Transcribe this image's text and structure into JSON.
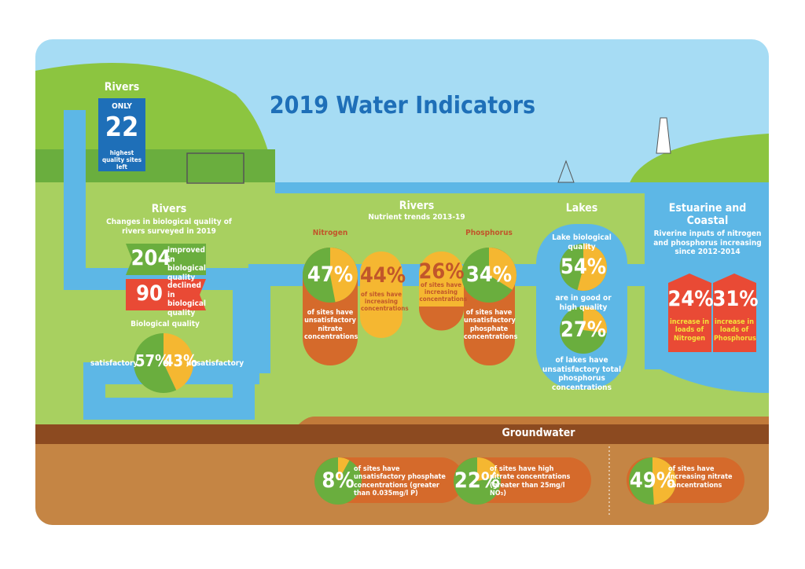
{
  "title": "2019 Water Indicators",
  "rivers_quality": {
    "heading": "Rivers",
    "only": "ONLY",
    "value": 22,
    "caption": "highest quality sites left"
  },
  "rivers_bio": {
    "heading": "Rivers",
    "subtitle": "Changes in biological quality of rivers surveyed in 2019",
    "improved": {
      "value": 204,
      "text": "improved in biological quality"
    },
    "declined": {
      "value": 90,
      "text": "declined in biological quality"
    },
    "pie_title": "Biological quality",
    "satisfactory": {
      "label": "satisfactory",
      "value": 57,
      "value_label": "57%"
    },
    "unsatisfactory": {
      "label": "unsatisfactory",
      "value": 43,
      "value_label": "43%"
    }
  },
  "rivers_nutrients": {
    "heading": "Rivers",
    "subtitle": "Nutrient trends 2013-19",
    "nitrogen": {
      "title": "Nitrogen",
      "unsatisfactory": {
        "value": 47,
        "value_label": "47%",
        "text": "of sites have unsatisfactory nitrate concentrations"
      },
      "increasing": {
        "value": 44,
        "value_label": "44%",
        "text": "of sites have increasing concentrations"
      }
    },
    "phosphorus": {
      "title": "Phosphorus",
      "increasing": {
        "value": 26,
        "value_label": "26%",
        "text": "of sites have increasing concentrations"
      },
      "unsatisfactory": {
        "value": 34,
        "value_label": "34%",
        "text": "of sites have unsatisfactory phosphate concentrations"
      }
    }
  },
  "lakes": {
    "heading": "Lakes",
    "subtitle": "Lake biological quality",
    "good": {
      "value": 54,
      "value_label": "54%",
      "text": "are in good or high quality"
    },
    "phosphorus": {
      "value": 27,
      "value_label": "27%",
      "text": "of lakes have unsatisfactory total phosphorus concentrations"
    }
  },
  "estuarine": {
    "heading": "Estuarine and Coastal",
    "subtitle": "Riverine inputs of nitrogen and phosphorus increasing since 2012-2014",
    "nitrogen": {
      "value": 24,
      "value_label": "24%",
      "text": "increase in loads of Nitrogen"
    },
    "phosphorus": {
      "value": 31,
      "value_label": "31%",
      "text": "increase in loads of Phosphorus"
    }
  },
  "groundwater": {
    "heading": "Groundwater",
    "items": [
      {
        "value": 8,
        "value_label": "8%",
        "text": "of sites have unsatisfactory phosphate concentrations (greater than 0.035mg/l P)"
      },
      {
        "value": 22,
        "value_label": "22%",
        "text": "of sites have high nitrate concentrations (greater than 25mg/l NO₃)"
      },
      {
        "value": 49,
        "value_label": "49%",
        "text": "of sites have increasing nitrate concentrations"
      }
    ]
  }
}
